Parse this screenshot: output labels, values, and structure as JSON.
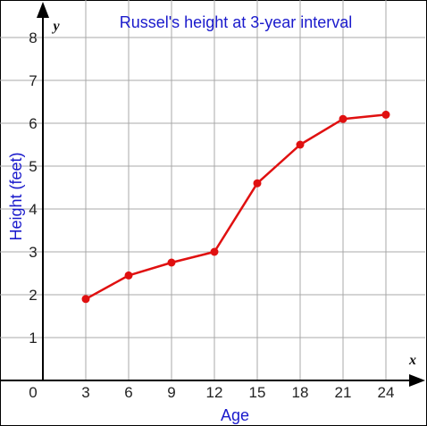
{
  "chart_data": {
    "type": "line",
    "title": "Russel's height at 3-year interval",
    "xlabel": "Age",
    "ylabel": "Height (feet)",
    "x_axis_letter": "x",
    "y_axis_letter": "y",
    "origin_label": "0",
    "x_ticks": [
      "3",
      "6",
      "9",
      "12",
      "15",
      "18",
      "21",
      "24"
    ],
    "y_ticks": [
      "1",
      "2",
      "3",
      "4",
      "5",
      "6",
      "7",
      "8"
    ],
    "xlim": [
      0,
      27
    ],
    "ylim": [
      0,
      8.7
    ],
    "grid": true,
    "series": [
      {
        "color": "#e01010",
        "points": [
          {
            "x": 3,
            "y": 1.9
          },
          {
            "x": 6,
            "y": 2.45
          },
          {
            "x": 9,
            "y": 2.75
          },
          {
            "x": 12,
            "y": 3.0
          },
          {
            "x": 15,
            "y": 4.6
          },
          {
            "x": 18,
            "y": 5.5
          },
          {
            "x": 21,
            "y": 6.1
          },
          {
            "x": 24,
            "y": 6.2
          }
        ]
      }
    ]
  }
}
